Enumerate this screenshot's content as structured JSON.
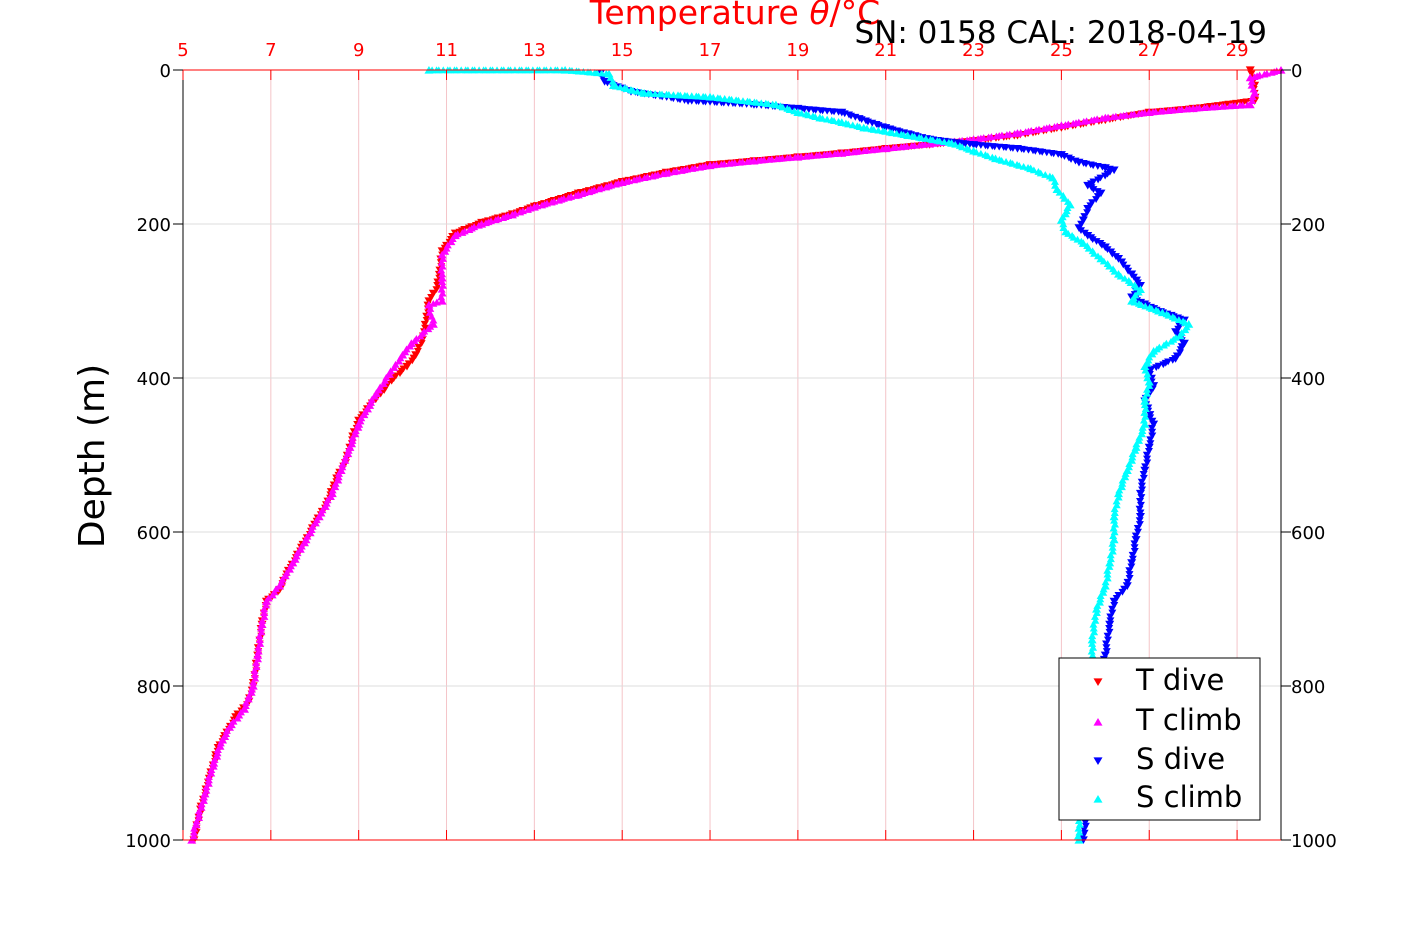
{
  "chart_data": {
    "type": "scatter",
    "title": "Temperature θ/°C",
    "subtitle": "SN: 0158  CAL: 2018-04-19",
    "ylabel": "Depth (m)",
    "xlim": [
      5,
      30
    ],
    "x_ticks": [
      "5",
      "7",
      "9",
      "11",
      "13",
      "15",
      "17",
      "19",
      "21",
      "23",
      "25",
      "27",
      "29"
    ],
    "ylim": [
      0,
      1000
    ],
    "y_reversed": true,
    "y_ticks": [
      "0",
      "200",
      "400",
      "600",
      "800",
      "1000"
    ],
    "grid": true,
    "legend_position": "bottom-right",
    "colors": {
      "axis_top": "#ff0000",
      "grid_vertical": "#f4c4c8",
      "grid_horizontal": "#dcdcdc",
      "T_dive": "#ff0000",
      "T_climb": "#ff00ff",
      "S_dive": "#0000ff",
      "S_climb": "#00ffff"
    },
    "series": [
      {
        "name": "T dive",
        "marker": "triangle-down",
        "points": [
          [
            29.3,
            0
          ],
          [
            29.4,
            20
          ],
          [
            29.4,
            40
          ],
          [
            28.0,
            50
          ],
          [
            27.0,
            55
          ],
          [
            26.0,
            65
          ],
          [
            25.0,
            75
          ],
          [
            24.0,
            85
          ],
          [
            23.0,
            92
          ],
          [
            22.0,
            97
          ],
          [
            21.0,
            102
          ],
          [
            20.0,
            108
          ],
          [
            19.0,
            113
          ],
          [
            18.0,
            118
          ],
          [
            17.0,
            123
          ],
          [
            16.0,
            133
          ],
          [
            15.0,
            145
          ],
          [
            14.0,
            160
          ],
          [
            13.0,
            177
          ],
          [
            12.5,
            187
          ],
          [
            11.8,
            198
          ],
          [
            11.2,
            212
          ],
          [
            10.9,
            235
          ],
          [
            10.85,
            260
          ],
          [
            10.8,
            280
          ],
          [
            10.7,
            290
          ],
          [
            10.6,
            300
          ],
          [
            10.55,
            320
          ],
          [
            10.5,
            340
          ],
          [
            10.45,
            350
          ],
          [
            10.3,
            370
          ],
          [
            10.1,
            385
          ],
          [
            9.8,
            400
          ],
          [
            9.5,
            420
          ],
          [
            9.2,
            440
          ],
          [
            9.0,
            455
          ],
          [
            8.9,
            470
          ],
          [
            8.8,
            490
          ],
          [
            8.7,
            510
          ],
          [
            8.5,
            530
          ],
          [
            8.3,
            560
          ],
          [
            8.0,
            590
          ],
          [
            7.7,
            620
          ],
          [
            7.4,
            650
          ],
          [
            7.2,
            675
          ],
          [
            6.9,
            690
          ],
          [
            6.8,
            720
          ],
          [
            6.7,
            760
          ],
          [
            6.6,
            800
          ],
          [
            6.5,
            820
          ],
          [
            6.2,
            840
          ],
          [
            6.0,
            860
          ],
          [
            5.8,
            880
          ],
          [
            5.6,
            920
          ],
          [
            5.4,
            960
          ],
          [
            5.25,
            1000
          ]
        ]
      },
      {
        "name": "T climb",
        "marker": "triangle-up",
        "points": [
          [
            30.0,
            0
          ],
          [
            29.3,
            10
          ],
          [
            29.4,
            30
          ],
          [
            29.3,
            45
          ],
          [
            28.0,
            50
          ],
          [
            27.0,
            55
          ],
          [
            26.0,
            62
          ],
          [
            25.0,
            72
          ],
          [
            24.0,
            82
          ],
          [
            23.0,
            90
          ],
          [
            22.0,
            96
          ],
          [
            21.0,
            102
          ],
          [
            20.0,
            108
          ],
          [
            19.0,
            113
          ],
          [
            18.0,
            118
          ],
          [
            17.0,
            124
          ],
          [
            16.0,
            134
          ],
          [
            15.0,
            146
          ],
          [
            14.0,
            162
          ],
          [
            13.0,
            178
          ],
          [
            12.5,
            188
          ],
          [
            11.8,
            200
          ],
          [
            11.2,
            215
          ],
          [
            10.9,
            240
          ],
          [
            10.9,
            270
          ],
          [
            10.9,
            300
          ],
          [
            10.6,
            305
          ],
          [
            10.7,
            330
          ],
          [
            10.2,
            355
          ],
          [
            10.0,
            370
          ],
          [
            9.7,
            395
          ],
          [
            9.4,
            420
          ],
          [
            9.2,
            440
          ],
          [
            9.0,
            460
          ],
          [
            8.8,
            490
          ],
          [
            8.6,
            520
          ],
          [
            8.4,
            550
          ],
          [
            8.1,
            580
          ],
          [
            7.8,
            610
          ],
          [
            7.5,
            640
          ],
          [
            7.2,
            670
          ],
          [
            6.9,
            690
          ],
          [
            6.8,
            720
          ],
          [
            6.7,
            760
          ],
          [
            6.6,
            800
          ],
          [
            6.4,
            830
          ],
          [
            6.1,
            850
          ],
          [
            5.9,
            870
          ],
          [
            5.7,
            900
          ],
          [
            5.5,
            940
          ],
          [
            5.3,
            980
          ],
          [
            5.2,
            1000
          ]
        ]
      },
      {
        "name": "S dive",
        "marker": "triangle-down",
        "points": [
          [
            14.5,
            5
          ],
          [
            14.6,
            15
          ],
          [
            15.2,
            28
          ],
          [
            16.5,
            40
          ],
          [
            18.0,
            45
          ],
          [
            19.0,
            50
          ],
          [
            20.0,
            55
          ],
          [
            21.0,
            75
          ],
          [
            22.0,
            90
          ],
          [
            23.0,
            97
          ],
          [
            24.0,
            102
          ],
          [
            25.0,
            110
          ],
          [
            25.4,
            120
          ],
          [
            26.0,
            127
          ],
          [
            26.2,
            130
          ],
          [
            25.6,
            150
          ],
          [
            25.9,
            160
          ],
          [
            25.6,
            180
          ],
          [
            25.5,
            195
          ],
          [
            25.4,
            205
          ],
          [
            25.6,
            215
          ],
          [
            26.0,
            230
          ],
          [
            26.3,
            245
          ],
          [
            26.6,
            265
          ],
          [
            26.8,
            280
          ],
          [
            26.6,
            295
          ],
          [
            27.1,
            310
          ],
          [
            27.8,
            325
          ],
          [
            27.6,
            340
          ],
          [
            27.8,
            355
          ],
          [
            27.6,
            375
          ],
          [
            27.0,
            390
          ],
          [
            27.1,
            410
          ],
          [
            26.9,
            430
          ],
          [
            27.1,
            460
          ],
          [
            27.0,
            490
          ],
          [
            26.9,
            520
          ],
          [
            26.8,
            550
          ],
          [
            26.8,
            580
          ],
          [
            26.7,
            610
          ],
          [
            26.6,
            640
          ],
          [
            26.5,
            670
          ],
          [
            26.2,
            690
          ],
          [
            26.1,
            720
          ],
          [
            26.0,
            760
          ],
          [
            25.9,
            800
          ],
          [
            25.8,
            850
          ],
          [
            25.7,
            900
          ],
          [
            25.6,
            950
          ],
          [
            25.5,
            1000
          ]
        ]
      },
      {
        "name": "S climb",
        "marker": "triangle-up",
        "points": [
          [
            10.6,
            0
          ],
          [
            13.7,
            0
          ],
          [
            14.7,
            5
          ],
          [
            14.8,
            20
          ],
          [
            15.5,
            30
          ],
          [
            17.0,
            35
          ],
          [
            18.5,
            45
          ],
          [
            19.0,
            55
          ],
          [
            19.5,
            62
          ],
          [
            20.0,
            68
          ],
          [
            20.5,
            75
          ],
          [
            21.5,
            85
          ],
          [
            22.5,
            95
          ],
          [
            23.0,
            105
          ],
          [
            23.5,
            115
          ],
          [
            24.3,
            128
          ],
          [
            24.8,
            140
          ],
          [
            24.9,
            155
          ],
          [
            25.2,
            175
          ],
          [
            25.0,
            195
          ],
          [
            25.1,
            210
          ],
          [
            25.5,
            225
          ],
          [
            25.9,
            245
          ],
          [
            26.3,
            265
          ],
          [
            26.8,
            285
          ],
          [
            26.6,
            300
          ],
          [
            27.3,
            315
          ],
          [
            27.9,
            330
          ],
          [
            27.7,
            345
          ],
          [
            27.1,
            365
          ],
          [
            26.9,
            385
          ],
          [
            27.0,
            405
          ],
          [
            26.9,
            430
          ],
          [
            26.9,
            460
          ],
          [
            26.7,
            490
          ],
          [
            26.5,
            520
          ],
          [
            26.3,
            550
          ],
          [
            26.2,
            580
          ],
          [
            26.2,
            610
          ],
          [
            26.1,
            640
          ],
          [
            26.0,
            670
          ],
          [
            25.8,
            700
          ],
          [
            25.7,
            740
          ],
          [
            25.7,
            780
          ],
          [
            25.6,
            820
          ],
          [
            25.5,
            870
          ],
          [
            25.4,
            920
          ],
          [
            25.4,
            970
          ],
          [
            25.4,
            1000
          ]
        ]
      }
    ]
  }
}
